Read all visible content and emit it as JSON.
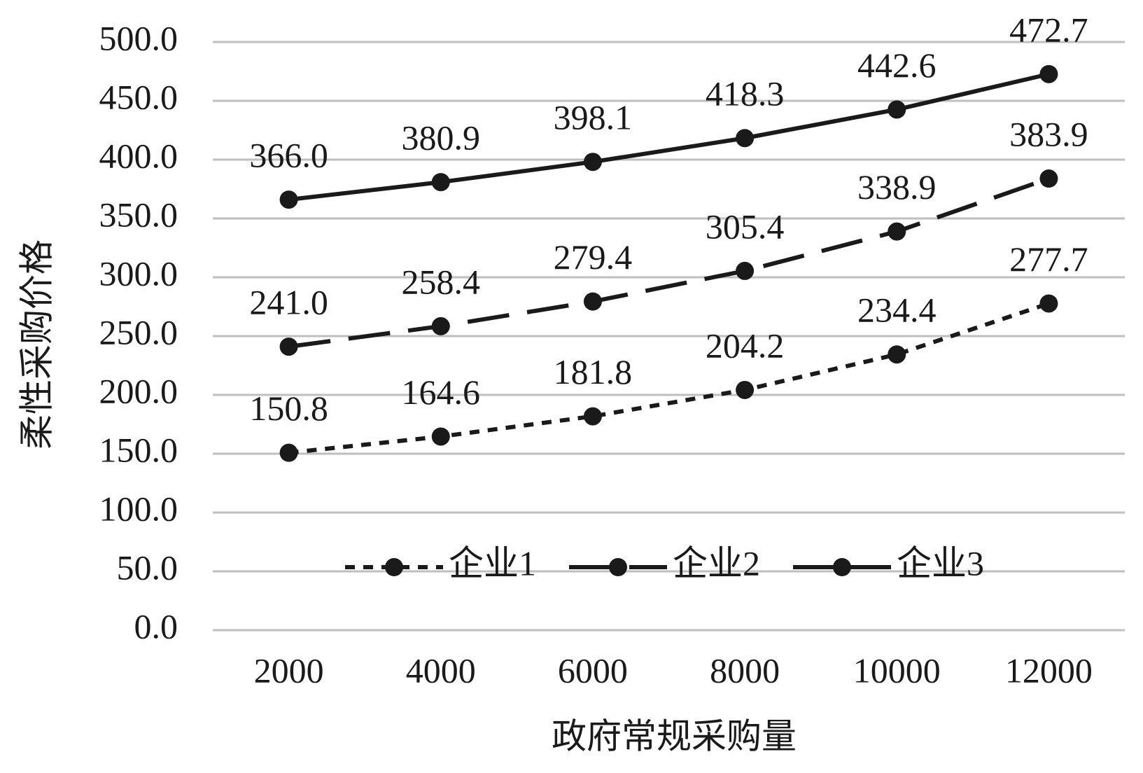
{
  "chart_data": {
    "type": "line",
    "x_label": "政府常规采购量",
    "y_label": "柔性采购价格",
    "categories": [
      "2000",
      "4000",
      "6000",
      "8000",
      "10000",
      "12000"
    ],
    "series": [
      {
        "name": "企业1",
        "color": "#1a1a1a",
        "line_style": "dotted",
        "values": [
          150.8,
          164.6,
          181.8,
          204.2,
          234.4,
          277.7
        ],
        "value_labels": [
          "150.8",
          "164.6",
          "181.8",
          "204.2",
          "234.4",
          "277.7"
        ]
      },
      {
        "name": "企业2",
        "color": "#1a1a1a",
        "line_style": "dashed",
        "values": [
          241.0,
          258.4,
          279.4,
          305.4,
          338.9,
          383.9
        ],
        "value_labels": [
          "241.0",
          "258.4",
          "279.4",
          "305.4",
          "338.9",
          "383.9"
        ]
      },
      {
        "name": "企业3",
        "color": "#1a1a1a",
        "line_style": "solid",
        "values": [
          366.0,
          380.9,
          398.1,
          418.3,
          442.6,
          472.7
        ],
        "value_labels": [
          "366.0",
          "380.9",
          "398.1",
          "418.3",
          "442.6",
          "472.7"
        ]
      }
    ],
    "ylim": [
      0,
      500
    ],
    "yticks": [
      {
        "value": 0,
        "label": "0.0"
      },
      {
        "value": 50,
        "label": "50.0"
      },
      {
        "value": 100,
        "label": "100.0"
      },
      {
        "value": 150,
        "label": "150.0"
      },
      {
        "value": 200,
        "label": "200.0"
      },
      {
        "value": 250,
        "label": "250.0"
      },
      {
        "value": 300,
        "label": "300.0"
      },
      {
        "value": 350,
        "label": "350.0"
      },
      {
        "value": 400,
        "label": "400.0"
      },
      {
        "value": 450,
        "label": "450.0"
      },
      {
        "value": 500,
        "label": "500.0"
      }
    ],
    "grid": true,
    "legend": "bottom"
  }
}
